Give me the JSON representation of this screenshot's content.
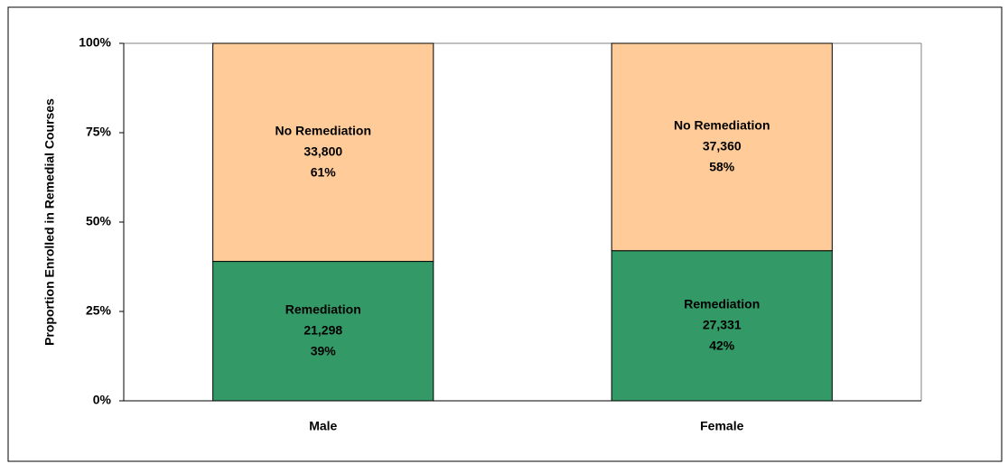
{
  "chart_data": {
    "type": "stacked_bar_100",
    "y_label": "Proportion Enrolled in Remedial Courses",
    "categories": [
      "Male",
      "Female"
    ],
    "series": [
      {
        "name": "Remediation",
        "color": "#339966",
        "values": [
          39,
          42
        ],
        "value_labels": [
          "39%",
          "42%"
        ],
        "count_labels": [
          "21,298",
          "27,331"
        ]
      },
      {
        "name": "No Remediation",
        "color": "#ffcc99",
        "values": [
          61,
          58
        ],
        "value_labels": [
          "61%",
          "58%"
        ],
        "count_labels": [
          "33,800",
          "37,360"
        ]
      }
    ],
    "ylim": [
      0,
      100
    ],
    "yticks": [
      {
        "value": 0,
        "label": "0%"
      },
      {
        "value": 25,
        "label": "25%"
      },
      {
        "value": 50,
        "label": "50%"
      },
      {
        "value": 75,
        "label": "75%"
      },
      {
        "value": 100,
        "label": "100%"
      }
    ]
  }
}
